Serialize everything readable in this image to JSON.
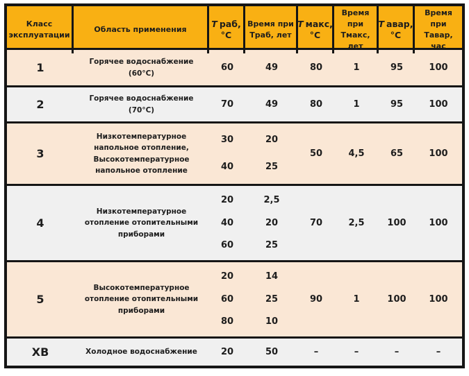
{
  "colors": {
    "header_bg": "#F9B013",
    "row_peach": "#FAE7D5",
    "row_gray": "#F0F0F0",
    "border": "#151515",
    "text": "#1d1d1d"
  },
  "table": {
    "header": {
      "class": "Класс эксплуатации",
      "application": "Область применения",
      "t_rab": {
        "sym": "T",
        "rest": "раб,",
        "unit": "°C"
      },
      "time_rab": {
        "line1": "Время при",
        "line2": "Траб, лет"
      },
      "t_max": {
        "sym": "T",
        "rest": "макс,",
        "unit": "°C"
      },
      "time_max": {
        "line1": "Время при",
        "line2": "Тмакс, лет"
      },
      "t_avar": {
        "sym": "T",
        "rest": "авар,",
        "unit": "°C"
      },
      "time_avar": {
        "line1": "Время при",
        "line2": "Тавар, час"
      }
    },
    "rows": [
      {
        "shade": "peach",
        "class": "1",
        "application": "Горячее водоснабжение (60°C)",
        "t_rab": [
          "60"
        ],
        "time_rab": [
          "49"
        ],
        "t_max": [
          "80"
        ],
        "time_max": [
          "1"
        ],
        "t_avar": [
          "95"
        ],
        "time_avar": [
          "100"
        ]
      },
      {
        "shade": "gray",
        "class": "2",
        "application": "Горячее водоснабжение (70°C)",
        "t_rab": [
          "70"
        ],
        "time_rab": [
          "49"
        ],
        "t_max": [
          "80"
        ],
        "time_max": [
          "1"
        ],
        "t_avar": [
          "95"
        ],
        "time_avar": [
          "100"
        ]
      },
      {
        "shade": "peach",
        "class": "3",
        "application": "Низкотемпературное напольное отопление, Высокотемпературное напольное отопление",
        "t_rab": [
          "30",
          "40"
        ],
        "time_rab": [
          "20",
          "25"
        ],
        "t_max": [
          "50"
        ],
        "time_max": [
          "4,5"
        ],
        "t_avar": [
          "65"
        ],
        "time_avar": [
          "100"
        ]
      },
      {
        "shade": "gray",
        "class": "4",
        "application": "Низкотемпературное отопление отопительными приборами",
        "t_rab": [
          "20",
          "40",
          "60"
        ],
        "time_rab": [
          "2,5",
          "20",
          "25"
        ],
        "t_max": [
          "70"
        ],
        "time_max": [
          "2,5"
        ],
        "t_avar": [
          "100"
        ],
        "time_avar": [
          "100"
        ]
      },
      {
        "shade": "peach",
        "class": "5",
        "application": "Высокотемпературное отопление отопительными приборами",
        "t_rab": [
          "20",
          "60",
          "80"
        ],
        "time_rab": [
          "14",
          "25",
          "10"
        ],
        "t_max": [
          "90"
        ],
        "time_max": [
          "1"
        ],
        "t_avar": [
          "100"
        ],
        "time_avar": [
          "100"
        ]
      },
      {
        "shade": "gray",
        "class": "ХВ",
        "application": "Холодное водоснабжение",
        "t_rab": [
          "20"
        ],
        "time_rab": [
          "50"
        ],
        "t_max": [
          "–"
        ],
        "time_max": [
          "–"
        ],
        "t_avar": [
          "–"
        ],
        "time_avar": [
          "–"
        ]
      }
    ]
  }
}
